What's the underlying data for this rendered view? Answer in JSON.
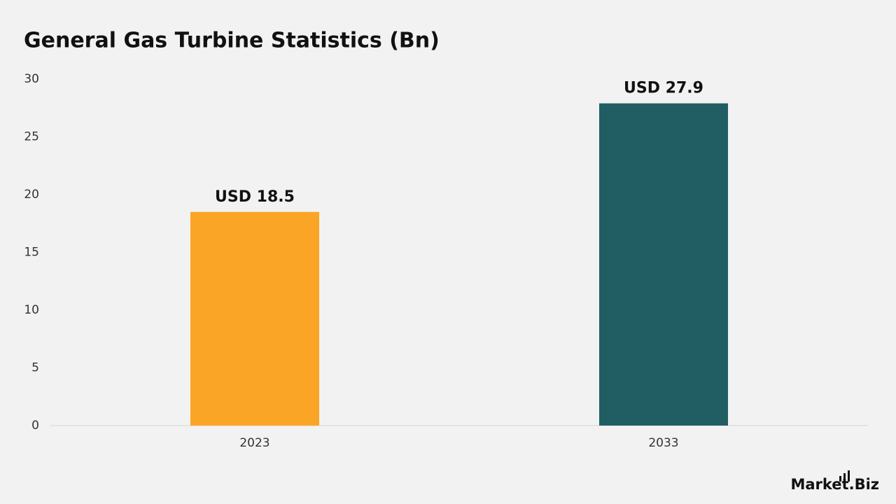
{
  "chart_data": {
    "type": "bar",
    "title": "General Gas Turbine Statistics (Bn)",
    "categories": [
      "2023",
      "2033"
    ],
    "values": [
      18.5,
      27.9
    ],
    "value_labels": [
      "USD 18.5",
      "USD 27.9"
    ],
    "colors": [
      "#fba526",
      "#215e63"
    ],
    "ylim": [
      0,
      30
    ],
    "yticks": [
      0,
      5,
      10,
      15,
      20,
      25,
      30
    ],
    "grid": false
  },
  "logo": "Market.Biz"
}
